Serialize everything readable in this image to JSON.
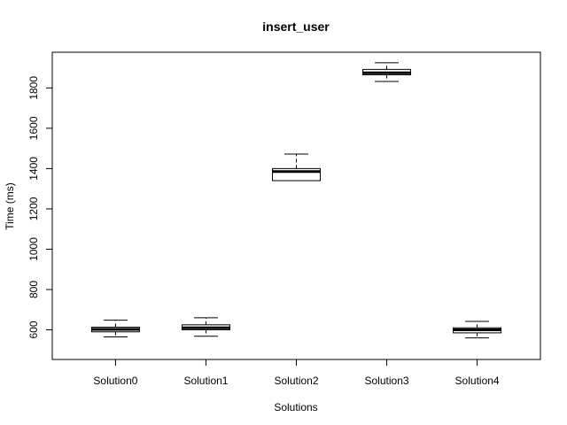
{
  "chart_data": {
    "type": "boxplot",
    "title": "insert_user",
    "xlabel": "Solutions",
    "ylabel": "Time (ms)",
    "ylim": [
      510,
      1920
    ],
    "yticks": [
      600,
      800,
      1000,
      1200,
      1400,
      1600,
      1800
    ],
    "grid": false,
    "categories": [
      "Solution0",
      "Solution1",
      "Solution2",
      "Solution3",
      "Solution4"
    ],
    "boxes": [
      {
        "whisker_low": 565,
        "q1": 590,
        "median": 602,
        "q3": 613,
        "whisker_high": 648
      },
      {
        "whisker_low": 568,
        "q1": 600,
        "median": 610,
        "q3": 625,
        "whisker_high": 660
      },
      {
        "whisker_low": 1340,
        "q1": 1340,
        "median": 1385,
        "q3": 1400,
        "whisker_high": 1472
      },
      {
        "whisker_low": 1832,
        "q1": 1865,
        "median": 1875,
        "q3": 1892,
        "whisker_high": 1925
      },
      {
        "whisker_low": 560,
        "q1": 585,
        "median": 600,
        "q3": 610,
        "whisker_high": 642
      }
    ]
  }
}
